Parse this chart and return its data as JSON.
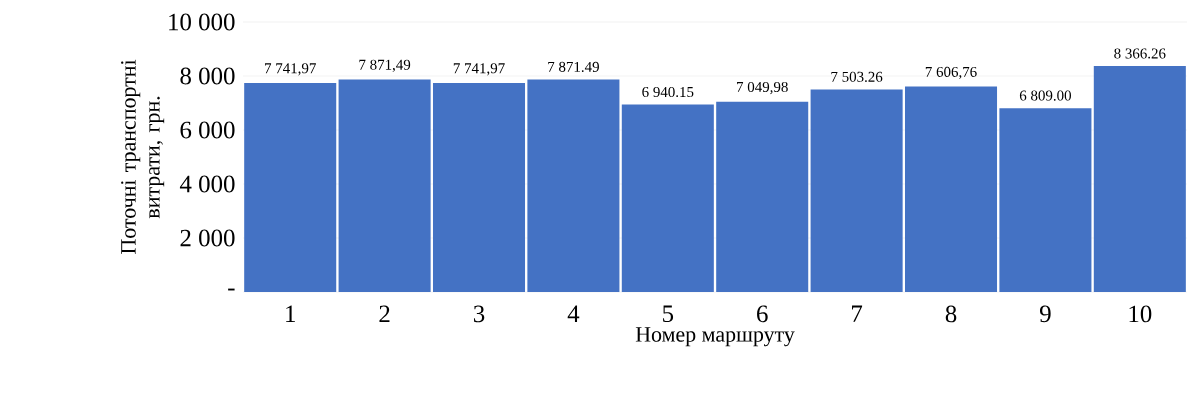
{
  "chart_data": {
    "type": "bar",
    "xlabel": "Номер маршруту",
    "ylabel": "Поточні транспортні витрати, грн.",
    "categories": [
      "1",
      "2",
      "3",
      "4",
      "5",
      "6",
      "7",
      "8",
      "9",
      "10"
    ],
    "values": [
      7741.97,
      7871.49,
      7741.97,
      7871.49,
      6940.15,
      7049.98,
      7503.26,
      7606.76,
      6809.0,
      8366.26
    ],
    "value_labels": [
      "7 741,97",
      "7 871,49",
      "7 741,97",
      "7 871.49",
      "6 940.15",
      "7 049,98",
      "7 503.26",
      "7 606,76",
      "6 809.00",
      "8 366.26"
    ],
    "color": "#4472c4",
    "ylim": [
      0,
      10000
    ],
    "yticks": [
      {
        "value": 0,
        "label": "-"
      },
      {
        "value": 2000,
        "label": "2 000"
      },
      {
        "value": 4000,
        "label": "4 000"
      },
      {
        "value": 6000,
        "label": "6 000"
      },
      {
        "value": 8000,
        "label": "8 000"
      },
      {
        "value": 10000,
        "label": "10 000"
      }
    ],
    "grid": "y"
  }
}
